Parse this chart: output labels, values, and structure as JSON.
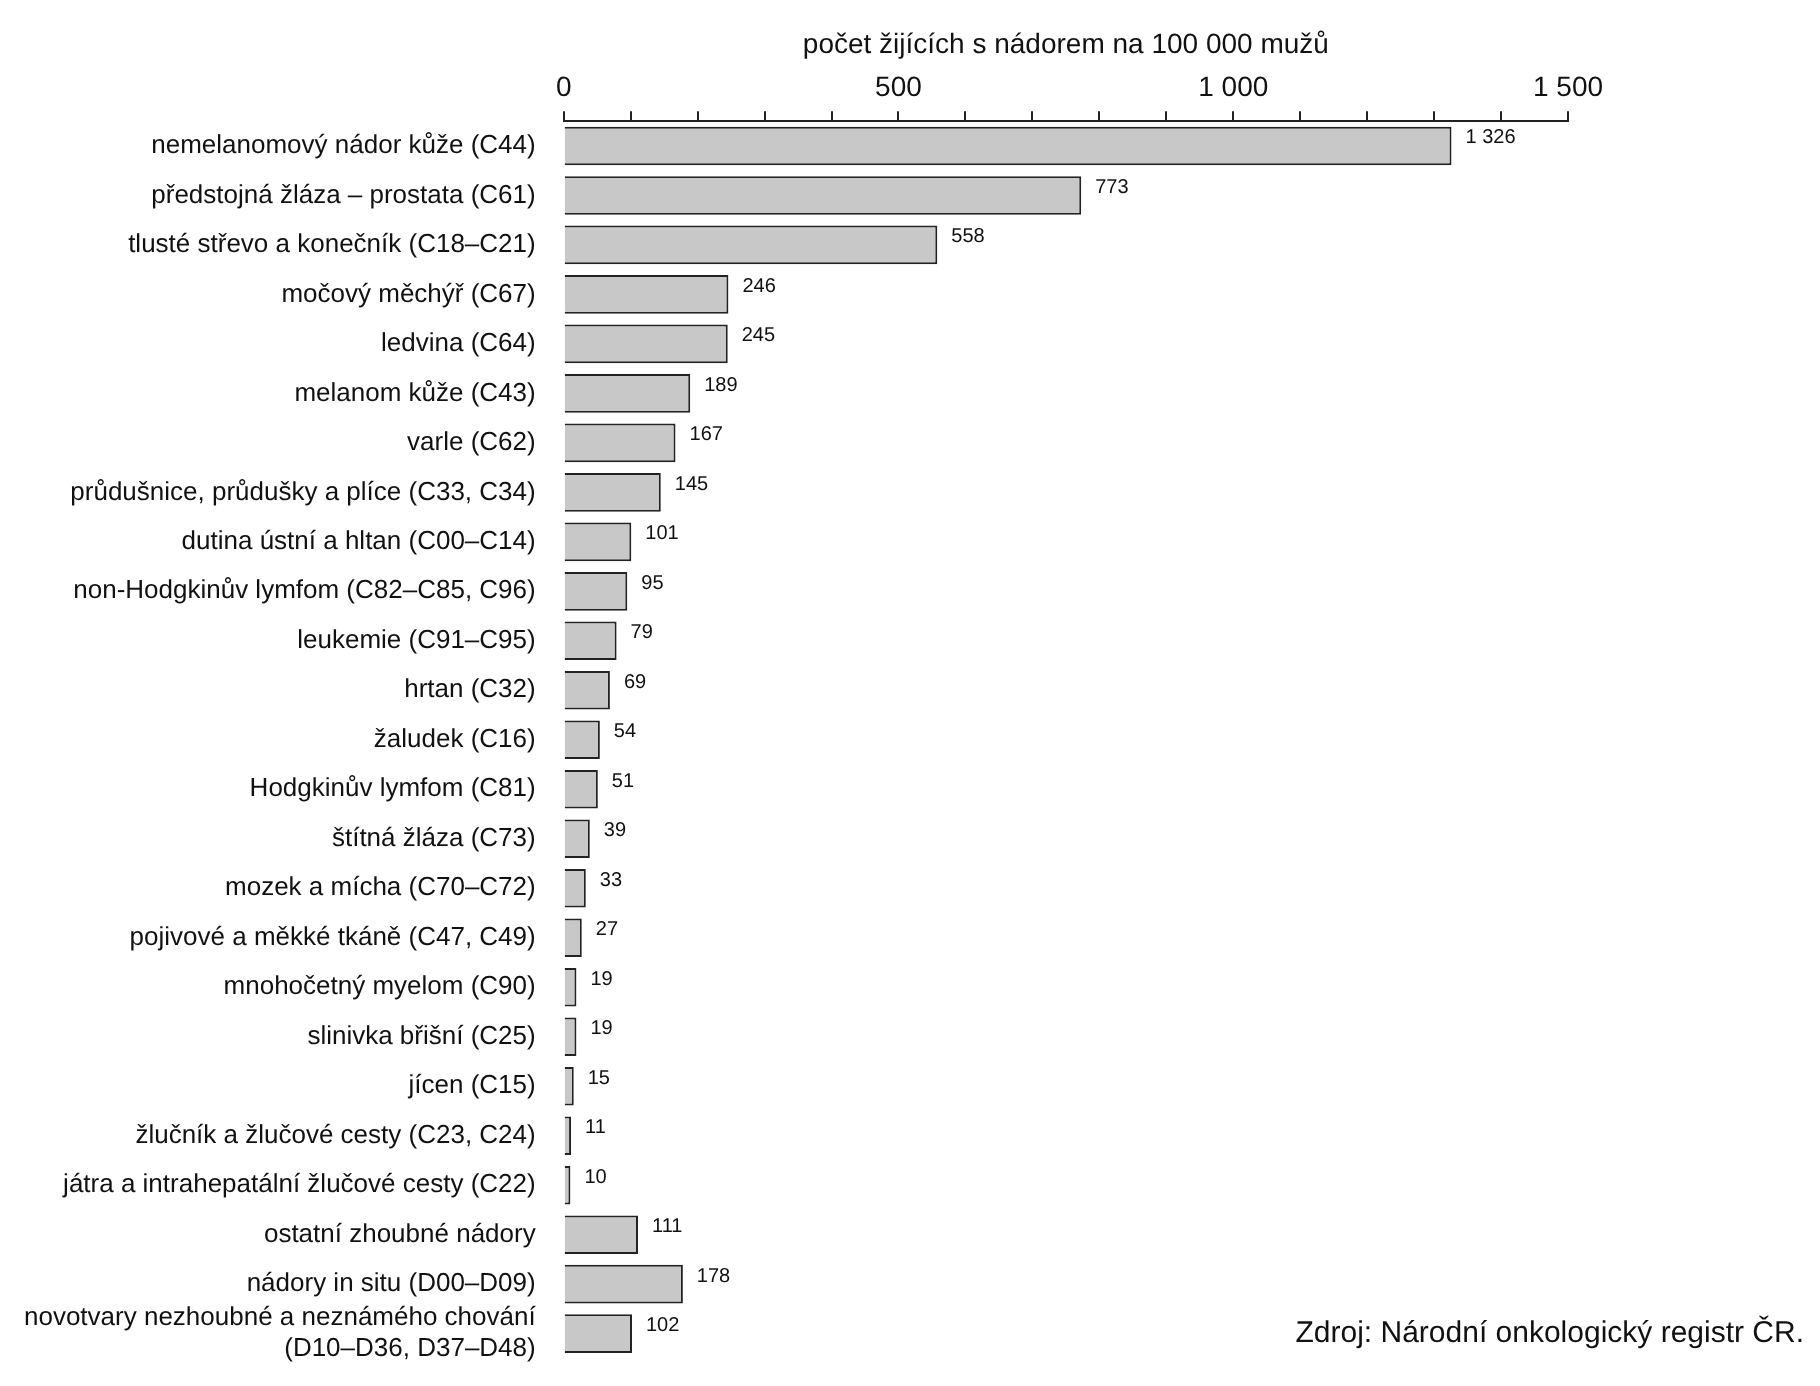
{
  "chart_data": {
    "type": "bar",
    "orientation": "horizontal",
    "xlabel": "počet žijících s nádorem na 100 000 mužů",
    "categories": [
      "nemelanomový nádor kůže (C44)",
      "předstojná žláza – prostata (C61)",
      "tlusté střevo a konečník (C18–C21)",
      "močový měchýř (C67)",
      "ledvina (C64)",
      "melanom kůže (C43)",
      "varle (C62)",
      "průdušnice, průdušky a plíce (C33, C34)",
      "dutina ústní a hltan (C00–C14)",
      "non-Hodgkinův lymfom (C82–C85, C96)",
      "leukemie (C91–C95)",
      "hrtan (C32)",
      "žaludek (C16)",
      "Hodgkinův lymfom (C81)",
      "štítná žláza (C73)",
      "mozek a mícha (C70–C72)",
      "pojivové a měkké tkáně (C47, C49)",
      "mnohočetný myelom (C90)",
      "slinivka břišní (C25)",
      "jícen (C15)",
      "žlučník a žlučové cesty (C23, C24)",
      "játra a intrahepatální žlučové cesty (C22)",
      "ostatní zhoubné nádory",
      "nádory in situ (D00–D09)",
      "novotvary nezhoubné a neznámého chování\n(D10–D36, D37–D48)"
    ],
    "values": [
      1326,
      773,
      558,
      246,
      245,
      189,
      167,
      145,
      101,
      95,
      79,
      69,
      54,
      51,
      39,
      33,
      27,
      19,
      19,
      15,
      11,
      10,
      111,
      178,
      102
    ],
    "value_labels": [
      "1 326",
      "773",
      "558",
      "246",
      "245",
      "189",
      "167",
      "145",
      "101",
      "95",
      "79",
      "69",
      "54",
      "51",
      "39",
      "33",
      "27",
      "19",
      "19",
      "15",
      "11",
      "10",
      "111",
      "178",
      "102"
    ],
    "color": "#c8c8c8",
    "xlim": [
      0,
      1500
    ],
    "xticks": [
      0,
      {
        "value": 100,
        "label": null
      },
      {
        "value": 200,
        "label": null
      },
      {
        "value": 300,
        "label": null
      },
      {
        "value": 400,
        "label": null
      },
      500,
      {
        "value": 600,
        "label": null
      },
      {
        "value": 700,
        "label": null
      },
      {
        "value": 800,
        "label": null
      },
      {
        "value": 900,
        "label": null
      },
      {
        "value": 1000,
        "label": "1 000"
      },
      {
        "value": 1100,
        "label": null
      },
      {
        "value": 1200,
        "label": null
      },
      {
        "value": 1300,
        "label": null
      },
      {
        "value": 1400,
        "label": null
      },
      {
        "value": 1500,
        "label": "1 500"
      }
    ],
    "grid": false,
    "legend": false,
    "annotations": [
      "Zdroj: Národní onkologický registr ČR."
    ]
  }
}
